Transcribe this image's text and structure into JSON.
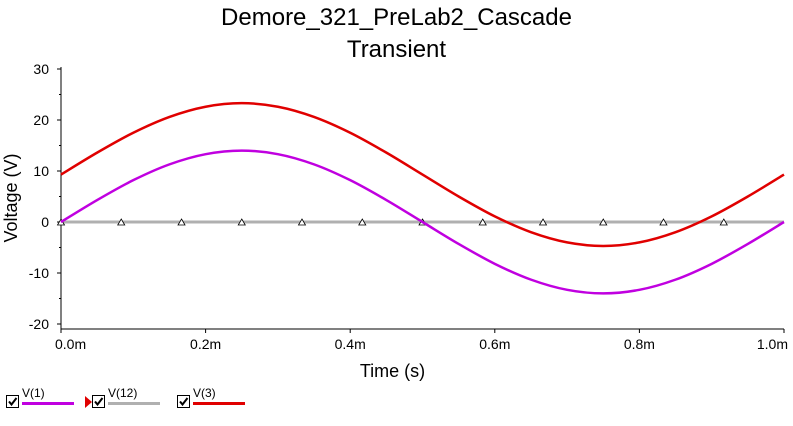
{
  "chart_data": {
    "type": "line",
    "title": "Demore_321_PreLab2_Cascade",
    "subtitle": "Transient",
    "xlabel": "Time (s)",
    "ylabel": "Voltage (V)",
    "xlim": [
      0,
      1.0
    ],
    "ylim": [
      -22,
      31
    ],
    "x_ticks": [
      {
        "v": 0.0,
        "label": "0.0m"
      },
      {
        "v": 0.2,
        "label": "0.2m"
      },
      {
        "v": 0.4,
        "label": "0.4m"
      },
      {
        "v": 0.6,
        "label": "0.6m"
      },
      {
        "v": 0.8,
        "label": "0.8m"
      },
      {
        "v": 1.0,
        "label": "1.0m"
      }
    ],
    "y_ticks": [
      {
        "v": 30,
        "label": "30"
      },
      {
        "v": 20,
        "label": "20"
      },
      {
        "v": 10,
        "label": "10"
      },
      {
        "v": 0,
        "label": "0"
      },
      {
        "v": -10,
        "label": "-10"
      },
      {
        "v": -20,
        "label": "-20"
      }
    ],
    "grid": false,
    "legend_position": "bottom-left",
    "series": [
      {
        "name": "V(1)",
        "color": "#c000e0",
        "x": [
          0,
          0.05,
          0.1,
          0.15,
          0.2,
          0.25,
          0.3,
          0.35,
          0.4,
          0.45,
          0.5,
          0.55,
          0.6,
          0.65,
          0.7,
          0.75,
          0.8,
          0.85,
          0.9,
          0.95,
          1.0
        ],
        "values": [
          0.0,
          4.3,
          8.2,
          11.3,
          13.3,
          14.0,
          13.3,
          11.3,
          8.2,
          4.3,
          0.0,
          -4.3,
          -8.2,
          -11.3,
          -13.3,
          -14.0,
          -13.3,
          -11.3,
          -8.2,
          -4.3,
          0.0
        ]
      },
      {
        "name": "V(12)",
        "color": "#b0b0b0",
        "x": [
          0,
          0.0833,
          0.1667,
          0.25,
          0.3333,
          0.4167,
          0.5,
          0.5833,
          0.6667,
          0.75,
          0.8333,
          0.9167,
          1.0
        ],
        "values": [
          0,
          0,
          0,
          0,
          0,
          0,
          0,
          0,
          0,
          0,
          0,
          0,
          0
        ],
        "markers": [
          0,
          0.0833,
          0.1667,
          0.25,
          0.3333,
          0.4167,
          0.5,
          0.5833,
          0.6667,
          0.75,
          0.8333,
          0.9167
        ]
      },
      {
        "name": "V(3)",
        "color": "#e00000",
        "x": [
          0,
          0.05,
          0.1,
          0.15,
          0.2,
          0.25,
          0.3,
          0.35,
          0.4,
          0.45,
          0.5,
          0.55,
          0.6,
          0.65,
          0.7,
          0.75,
          0.8,
          0.85,
          0.9,
          0.95,
          1.0
        ],
        "values": [
          9.3,
          13.6,
          17.5,
          20.6,
          22.6,
          23.3,
          22.6,
          20.6,
          17.5,
          13.6,
          9.3,
          5.0,
          1.1,
          -2.0,
          -4.0,
          -4.7,
          -4.0,
          -2.0,
          1.1,
          5.0,
          9.3
        ]
      }
    ]
  },
  "legend": {
    "items": [
      {
        "label": "V(1)",
        "color": "#c000e0",
        "checked": true
      },
      {
        "label": "V(12)",
        "color": "#b0b0b0",
        "checked": true
      },
      {
        "label": "V(3)",
        "color": "#e00000",
        "checked": true
      }
    ]
  }
}
